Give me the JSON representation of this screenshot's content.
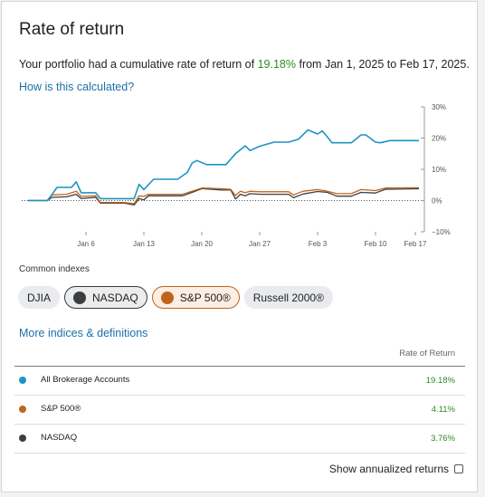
{
  "header": {
    "title": "Rate of return"
  },
  "summary": {
    "prefix": "Your portfolio had a cumulative rate of return of ",
    "rate": "19.18%",
    "suffix": " from Jan 1, 2025 to Feb 17, 2025."
  },
  "how_link": "How is this calculated?",
  "colors": {
    "portfolio": "#1f93c6",
    "sp500": "#c0651c",
    "nasdaq": "#3b3f44",
    "positive": "#2e8b23",
    "link": "#1e6fa8"
  },
  "chart_data": {
    "type": "line",
    "x_ticks": [
      "Jan 6",
      "Jan 13",
      "Jan 20",
      "Jan 27",
      "Feb 3",
      "Feb 10",
      "Feb 17"
    ],
    "y_ticks": [
      "30%",
      "20%",
      "10%",
      "0%",
      "−10%"
    ],
    "ylim": [
      -10,
      30
    ],
    "zero_line": "dotted",
    "series": [
      {
        "name": "All Brokerage Accounts",
        "color": "#1f93c6",
        "points": [
          [
            0,
            0
          ],
          [
            2,
            0
          ],
          [
            4,
            0
          ],
          [
            5,
            2
          ],
          [
            6,
            4.2
          ],
          [
            9,
            4.2
          ],
          [
            10,
            6
          ],
          [
            11,
            2.5
          ],
          [
            13,
            2.5
          ],
          [
            14,
            2.5
          ],
          [
            15,
            0.6
          ],
          [
            22,
            0.6
          ],
          [
            23,
            5.2
          ],
          [
            24,
            3.5
          ],
          [
            26,
            6.8
          ],
          [
            31,
            6.8
          ],
          [
            33,
            9
          ],
          [
            34,
            12
          ],
          [
            35,
            12.8
          ],
          [
            37,
            11.5
          ],
          [
            41,
            11.5
          ],
          [
            43,
            15
          ],
          [
            45,
            17.5
          ],
          [
            46,
            16
          ],
          [
            48,
            17.4
          ],
          [
            51,
            18.7
          ],
          [
            54,
            18.7
          ],
          [
            56,
            19.6
          ],
          [
            58,
            22.6
          ],
          [
            60,
            21.3
          ],
          [
            61,
            22.3
          ],
          [
            63,
            18.5
          ],
          [
            67,
            18.5
          ],
          [
            69,
            21
          ],
          [
            70,
            21
          ],
          [
            72,
            18.7
          ],
          [
            73,
            18.5
          ],
          [
            75,
            19.2
          ],
          [
            77,
            19.2
          ],
          [
            81,
            19.2
          ]
        ]
      },
      {
        "name": "S&P 500®",
        "color": "#c0651c",
        "points": [
          [
            0,
            0
          ],
          [
            4,
            0
          ],
          [
            5,
            1.8
          ],
          [
            8,
            2
          ],
          [
            10,
            3
          ],
          [
            11,
            1.3
          ],
          [
            14,
            1.5
          ],
          [
            15,
            -0.6
          ],
          [
            20,
            -0.6
          ],
          [
            22,
            -1
          ],
          [
            23,
            1.5
          ],
          [
            24,
            1.3
          ],
          [
            25,
            2
          ],
          [
            32,
            2
          ],
          [
            34,
            3
          ],
          [
            36,
            4
          ],
          [
            40,
            3.8
          ],
          [
            42,
            3.6
          ],
          [
            43,
            1.6
          ],
          [
            44,
            3
          ],
          [
            45,
            2.5
          ],
          [
            46,
            3
          ],
          [
            48,
            2.8
          ],
          [
            54,
            2.8
          ],
          [
            55,
            1.8
          ],
          [
            57,
            3
          ],
          [
            60,
            3.5
          ],
          [
            62,
            3
          ],
          [
            64,
            2.2
          ],
          [
            67,
            2.2
          ],
          [
            69,
            3.5
          ],
          [
            72,
            3.2
          ],
          [
            74,
            4
          ],
          [
            81,
            4.1
          ]
        ]
      },
      {
        "name": "NASDAQ",
        "color": "#3b3f44",
        "points": [
          [
            0,
            0
          ],
          [
            4,
            0
          ],
          [
            5,
            1
          ],
          [
            8,
            1.2
          ],
          [
            10,
            2
          ],
          [
            11,
            0.6
          ],
          [
            14,
            1
          ],
          [
            15,
            -0.8
          ],
          [
            20,
            -0.8
          ],
          [
            22,
            -1.4
          ],
          [
            23,
            0.6
          ],
          [
            24,
            0.2
          ],
          [
            25,
            1.5
          ],
          [
            32,
            1.5
          ],
          [
            34,
            2.6
          ],
          [
            36,
            3.8
          ],
          [
            40,
            3.4
          ],
          [
            42,
            3.4
          ],
          [
            43,
            0.5
          ],
          [
            44,
            2
          ],
          [
            45,
            1.5
          ],
          [
            46,
            2.2
          ],
          [
            48,
            2
          ],
          [
            54,
            2
          ],
          [
            55,
            0.9
          ],
          [
            57,
            2.1
          ],
          [
            60,
            2.9
          ],
          [
            62,
            2.6
          ],
          [
            64,
            1.4
          ],
          [
            67,
            1.4
          ],
          [
            69,
            2.6
          ],
          [
            72,
            2.4
          ],
          [
            74,
            3.6
          ],
          [
            81,
            3.76
          ]
        ]
      }
    ]
  },
  "indexes": {
    "label": "Common indexes",
    "pills": [
      {
        "label": "DJIA",
        "selected": false
      },
      {
        "label": "NASDAQ",
        "selected": true,
        "dot_color": "#3b3f44"
      },
      {
        "label": "S&P 500®",
        "selected": true,
        "dot_color": "#c0651c"
      },
      {
        "label": "Russell 2000®",
        "selected": false
      }
    ]
  },
  "more_link": "More indices & definitions",
  "table": {
    "header": "Rate of Return",
    "rows": [
      {
        "name": "All Brokerage Accounts",
        "value": "19.18%",
        "color": "#1f93c6"
      },
      {
        "name": "S&P 500®",
        "value": "4.11%",
        "color": "#c0651c"
      },
      {
        "name": "NASDAQ",
        "value": "3.76%",
        "color": "#3b3f44"
      }
    ]
  },
  "annualized": {
    "label": "Show annualized returns",
    "checked": false
  }
}
